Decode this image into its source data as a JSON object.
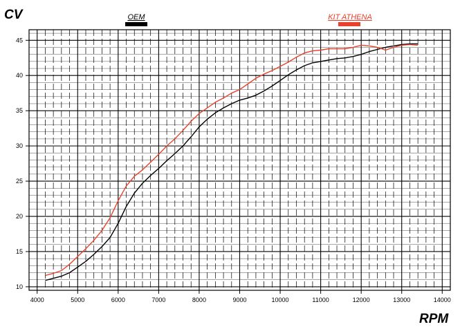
{
  "chart_data": {
    "type": "line",
    "ylabel": "CV",
    "xlabel": "RPM",
    "xlim": [
      3800,
      14200
    ],
    "ylim": [
      9.5,
      46.5
    ],
    "x_ticks": [
      4000,
      5000,
      6000,
      7000,
      8000,
      9000,
      10000,
      11000,
      12000,
      13000,
      14000
    ],
    "y_ticks": [
      10,
      15,
      20,
      25,
      30,
      35,
      40,
      45
    ],
    "grid": true,
    "legend_placement": "top",
    "series": [
      {
        "name": "OEM",
        "color": "#000000",
        "points": [
          [
            4200,
            10.9
          ],
          [
            4400,
            11.2
          ],
          [
            4600,
            11.5
          ],
          [
            4800,
            12.0
          ],
          [
            5000,
            12.8
          ],
          [
            5200,
            13.6
          ],
          [
            5400,
            14.6
          ],
          [
            5600,
            15.7
          ],
          [
            5800,
            17.0
          ],
          [
            6000,
            19.0
          ],
          [
            6200,
            21.4
          ],
          [
            6400,
            23.3
          ],
          [
            6600,
            24.7
          ],
          [
            6800,
            25.8
          ],
          [
            7000,
            26.8
          ],
          [
            7200,
            27.9
          ],
          [
            7400,
            28.9
          ],
          [
            7600,
            30.0
          ],
          [
            7800,
            31.3
          ],
          [
            8000,
            32.7
          ],
          [
            8200,
            33.8
          ],
          [
            8400,
            34.7
          ],
          [
            8600,
            35.4
          ],
          [
            8800,
            36.0
          ],
          [
            9000,
            36.5
          ],
          [
            9200,
            36.8
          ],
          [
            9400,
            37.2
          ],
          [
            9600,
            37.8
          ],
          [
            9800,
            38.5
          ],
          [
            10000,
            39.3
          ],
          [
            10200,
            40.1
          ],
          [
            10400,
            40.8
          ],
          [
            10600,
            41.4
          ],
          [
            10800,
            41.8
          ],
          [
            11000,
            42.0
          ],
          [
            11200,
            42.2
          ],
          [
            11400,
            42.4
          ],
          [
            11600,
            42.5
          ],
          [
            11800,
            42.7
          ],
          [
            12000,
            43.0
          ],
          [
            12200,
            43.4
          ],
          [
            12400,
            43.7
          ],
          [
            12600,
            44.0
          ],
          [
            12800,
            44.2
          ],
          [
            13000,
            44.4
          ],
          [
            13200,
            44.5
          ],
          [
            13400,
            44.5
          ]
        ]
      },
      {
        "name": "KIT ATHENA",
        "color": "#e8412c",
        "points": [
          [
            4200,
            11.6
          ],
          [
            4400,
            11.9
          ],
          [
            4600,
            12.3
          ],
          [
            4800,
            13.2
          ],
          [
            5000,
            14.3
          ],
          [
            5200,
            15.4
          ],
          [
            5400,
            16.6
          ],
          [
            5600,
            18.0
          ],
          [
            5800,
            19.8
          ],
          [
            6000,
            22.2
          ],
          [
            6200,
            24.3
          ],
          [
            6400,
            25.7
          ],
          [
            6600,
            26.6
          ],
          [
            6800,
            27.7
          ],
          [
            7000,
            28.8
          ],
          [
            7200,
            30.0
          ],
          [
            7400,
            31.0
          ],
          [
            7600,
            32.2
          ],
          [
            7800,
            33.5
          ],
          [
            8000,
            34.6
          ],
          [
            8200,
            35.4
          ],
          [
            8400,
            36.2
          ],
          [
            8600,
            36.8
          ],
          [
            8800,
            37.5
          ],
          [
            9000,
            38.0
          ],
          [
            9200,
            38.8
          ],
          [
            9400,
            39.6
          ],
          [
            9600,
            40.2
          ],
          [
            9800,
            40.7
          ],
          [
            10000,
            41.3
          ],
          [
            10200,
            41.9
          ],
          [
            10400,
            42.6
          ],
          [
            10600,
            43.2
          ],
          [
            10800,
            43.5
          ],
          [
            11000,
            43.6
          ],
          [
            11200,
            43.8
          ],
          [
            11400,
            43.8
          ],
          [
            11600,
            43.8
          ],
          [
            11800,
            44.0
          ],
          [
            12000,
            44.3
          ],
          [
            12200,
            44.2
          ],
          [
            12400,
            44.0
          ],
          [
            12600,
            43.6
          ],
          [
            12800,
            44.0
          ],
          [
            13000,
            44.3
          ],
          [
            13200,
            44.4
          ],
          [
            13400,
            44.3
          ]
        ]
      }
    ]
  }
}
